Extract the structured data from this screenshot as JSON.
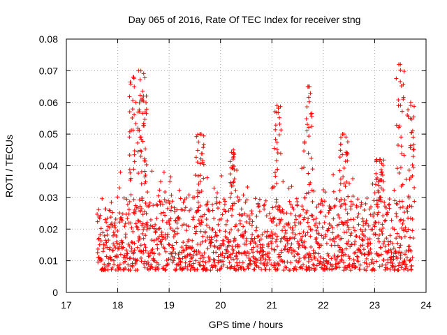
{
  "chart_data": {
    "type": "scatter",
    "title": "Day 065 of 2016, Rate Of TEC Index for receiver stng",
    "xlabel": "GPS time / hours",
    "ylabel": "ROTI / TECUs",
    "xlim": [
      17,
      24
    ],
    "ylim": [
      0,
      0.08
    ],
    "xticks": [
      "17",
      "18",
      "19",
      "20",
      "21",
      "22",
      "23",
      "24"
    ],
    "yticks": [
      "0",
      "0.01",
      "0.02",
      "0.03",
      "0.04",
      "0.05",
      "0.06",
      "0.07",
      "0.08"
    ],
    "grid": true,
    "marker": "+",
    "color": "#ff0000",
    "series": [
      {
        "name": "ROTI",
        "x_range": [
          17.6,
          23.75
        ],
        "baseline_band": [
          0.007,
          0.03
        ],
        "peaks": [
          {
            "x": 18.3,
            "y": 0.068
          },
          {
            "x": 18.45,
            "y": 0.07
          },
          {
            "x": 18.5,
            "y": 0.062
          },
          {
            "x": 19.6,
            "y": 0.05
          },
          {
            "x": 20.25,
            "y": 0.045
          },
          {
            "x": 21.1,
            "y": 0.059
          },
          {
            "x": 21.7,
            "y": 0.065
          },
          {
            "x": 22.4,
            "y": 0.05
          },
          {
            "x": 23.1,
            "y": 0.042
          },
          {
            "x": 23.5,
            "y": 0.072
          },
          {
            "x": 23.7,
            "y": 0.06
          }
        ]
      }
    ]
  }
}
